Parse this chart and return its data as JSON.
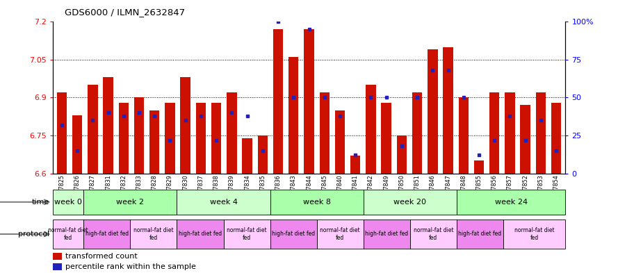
{
  "title": "GDS6000 / ILMN_2632847",
  "samples": [
    "GSM1577825",
    "GSM1577826",
    "GSM1577827",
    "GSM1577831",
    "GSM1577832",
    "GSM1577833",
    "GSM1577828",
    "GSM1577829",
    "GSM1577830",
    "GSM1577837",
    "GSM1577838",
    "GSM1577839",
    "GSM1577834",
    "GSM1577835",
    "GSM1577836",
    "GSM1577843",
    "GSM1577844",
    "GSM1577845",
    "GSM1577840",
    "GSM1577841",
    "GSM1577842",
    "GSM1577849",
    "GSM1577850",
    "GSM1577851",
    "GSM1577846",
    "GSM1577847",
    "GSM1577848",
    "GSM1577855",
    "GSM1577856",
    "GSM1577857",
    "GSM1577852",
    "GSM1577853",
    "GSM1577854"
  ],
  "bar_tops": [
    6.92,
    6.83,
    6.95,
    6.98,
    6.88,
    6.9,
    6.85,
    6.88,
    6.98,
    6.88,
    6.88,
    6.92,
    6.74,
    6.75,
    7.17,
    7.06,
    7.17,
    6.92,
    6.85,
    6.67,
    6.95,
    6.88,
    6.75,
    6.92,
    7.09,
    7.1,
    6.9,
    6.65,
    6.92,
    6.92,
    6.87,
    6.92,
    6.88
  ],
  "percentile_ranks": [
    32,
    15,
    35,
    40,
    38,
    40,
    38,
    22,
    35,
    38,
    22,
    40,
    38,
    15,
    100,
    50,
    95,
    50,
    38,
    12,
    50,
    50,
    18,
    50,
    68,
    68,
    50,
    12,
    22,
    38,
    22,
    35,
    15
  ],
  "ylim_left": [
    6.6,
    7.2
  ],
  "ylim_right": [
    0,
    100
  ],
  "bar_color": "#CC1100",
  "dot_color": "#2222BB",
  "bar_bottom": 6.6,
  "yticks_left": [
    6.6,
    6.75,
    6.9,
    7.05,
    7.2
  ],
  "yticks_right": [
    0,
    25,
    50,
    75,
    100
  ],
  "time_groups": [
    {
      "label": "week 0",
      "start": 0,
      "end": 2,
      "color": "#ccffcc"
    },
    {
      "label": "week 2",
      "start": 2,
      "end": 8,
      "color": "#aaffaa"
    },
    {
      "label": "week 4",
      "start": 8,
      "end": 14,
      "color": "#ccffcc"
    },
    {
      "label": "week 8",
      "start": 14,
      "end": 20,
      "color": "#aaffaa"
    },
    {
      "label": "week 20",
      "start": 20,
      "end": 26,
      "color": "#ccffcc"
    },
    {
      "label": "week 24",
      "start": 26,
      "end": 33,
      "color": "#aaffaa"
    }
  ],
  "protocol_groups": [
    {
      "label": "normal-fat diet\nfed",
      "start": 0,
      "end": 2,
      "color": "#ffccff"
    },
    {
      "label": "high-fat diet fed",
      "start": 2,
      "end": 5,
      "color": "#ee88ee"
    },
    {
      "label": "normal-fat diet\nfed",
      "start": 5,
      "end": 8,
      "color": "#ffccff"
    },
    {
      "label": "high-fat diet fed",
      "start": 8,
      "end": 11,
      "color": "#ee88ee"
    },
    {
      "label": "normal-fat diet\nfed",
      "start": 11,
      "end": 14,
      "color": "#ffccff"
    },
    {
      "label": "high-fat diet fed",
      "start": 14,
      "end": 17,
      "color": "#ee88ee"
    },
    {
      "label": "normal-fat diet\nfed",
      "start": 17,
      "end": 20,
      "color": "#ffccff"
    },
    {
      "label": "high-fat diet fed",
      "start": 20,
      "end": 23,
      "color": "#ee88ee"
    },
    {
      "label": "normal-fat diet\nfed",
      "start": 23,
      "end": 26,
      "color": "#ffccff"
    },
    {
      "label": "high-fat diet fed",
      "start": 26,
      "end": 29,
      "color": "#ee88ee"
    },
    {
      "label": "normal-fat diet\nfed",
      "start": 29,
      "end": 33,
      "color": "#ffccff"
    }
  ],
  "legend_items": [
    {
      "color": "#CC1100",
      "label": "transformed count"
    },
    {
      "color": "#2222BB",
      "label": "percentile rank within the sample"
    }
  ]
}
